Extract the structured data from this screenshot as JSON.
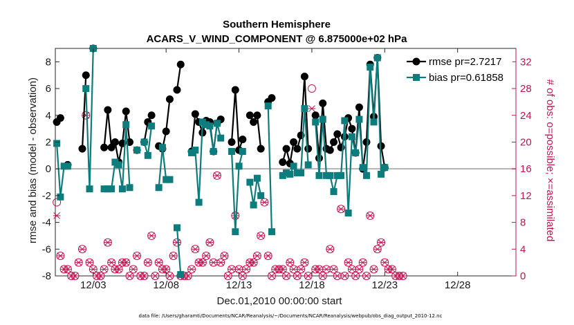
{
  "chart_data": {
    "type": "line",
    "title_line1": "Southern Hemisphere",
    "title_line2": "ACARS_V_WIND_COMPONENT @ 6.875000e+02 hPa",
    "xlabel": "Dec.01,2010 00:00:00 start",
    "ylabel_left": "rmse and bias (model - observation)",
    "ylabel_right": "# of obs: o=possible; ×=assimilated",
    "footnote": "data file: /Users/gharamti/Documents/NCAR/Reanalysis/~/Documents/NCAR/Reanalysis/webpub/obs_diag_output_2010-12.nc",
    "x_start": 0.5,
    "x_end": 31.75,
    "x_step": 0.25,
    "xlim": [
      0.4,
      32
    ],
    "ylim_left": [
      -8,
      9
    ],
    "ylim_right": [
      0,
      34
    ],
    "x_ticks": [
      3,
      8,
      13,
      18,
      23,
      28
    ],
    "x_tick_labels": [
      "12/03",
      "12/08",
      "12/13",
      "12/18",
      "12/23",
      "12/28"
    ],
    "y_ticks_left": [
      -8,
      -6,
      -4,
      -2,
      0,
      2,
      4,
      6,
      8
    ],
    "y_tick_labels_left": [
      "-8",
      "-6",
      "-4",
      "-2",
      "0",
      "2",
      "4",
      "6",
      "8"
    ],
    "y_ticks_right": [
      0,
      4,
      8,
      12,
      16,
      20,
      24,
      28,
      32
    ],
    "y_tick_labels_right": [
      "0",
      "4",
      "8",
      "12",
      "16",
      "20",
      "24",
      "28",
      "32"
    ],
    "series": [
      {
        "name": "rmse pr=2.7217",
        "color": "#000000",
        "values": [
          3.5,
          3.8,
          null,
          0.3,
          null,
          null,
          null,
          1.5,
          7.0,
          null,
          9.0,
          null,
          null,
          1.6,
          4.4,
          1.6,
          2.0,
          0.5,
          1.9,
          4.3,
          2.0,
          null,
          1.4,
          null,
          2.0,
          3.5,
          4.0,
          null,
          1.7,
          1.5,
          2.8,
          5.2,
          null,
          5.9,
          7.8,
          null,
          null,
          1.3,
          4.1,
          3.5,
          2.7,
          3.6,
          3.5,
          1.3,
          3.4,
          3.7,
          null,
          null,
          2.0,
          5.9,
          1.4,
          2.2,
          null,
          4.0,
          3.5,
          4.0,
          1.5,
          null,
          5.0,
          5.3,
          null,
          null,
          0.5,
          1.5,
          0.4,
          2.0,
          1.5,
          2.5,
          6.9,
          1.5,
          null,
          4.0,
          0.8,
          4.9,
          1.5,
          1.4,
          2.0,
          2.6,
          1.6,
          2.4,
          3.8,
          3.0,
          1.2,
          4.6,
          0.0,
          2.0,
          7.8,
          3.9,
          8.3,
          1.7,
          0.1,
          null,
          null,
          null,
          null,
          null
        ]
      },
      {
        "name": "bias pr=0.61858",
        "color": "#0c7c7c",
        "values": [
          1.9,
          -2.1,
          0.2,
          0.2,
          null,
          null,
          null,
          null,
          6.0,
          -1.5,
          9.0,
          null,
          null,
          -1.5,
          -1.5,
          -1.5,
          0.5,
          0.3,
          -1.5,
          3.3,
          -1.4,
          null,
          1.4,
          null,
          2.0,
          1.0,
          3.2,
          null,
          -1.4,
          1.6,
          -0.8,
          -0.8,
          null,
          -4.4,
          -7.9,
          null,
          null,
          1.2,
          1.4,
          -2.5,
          3.5,
          3.3,
          3.2,
          1.3,
          3.4,
          2.3,
          null,
          null,
          1.3,
          -4.7,
          0.2,
          1.3,
          null,
          -1.0,
          -2.7,
          -0.7,
          -2.0,
          null,
          4.7,
          -4.7,
          null,
          null,
          -0.5,
          -0.3,
          -0.4,
          0.2,
          -0.3,
          -0.3,
          4.5,
          0.3,
          null,
          3.5,
          -0.5,
          3.7,
          -0.5,
          -0.5,
          -1.7,
          -0.5,
          -0.5,
          3.6,
          -3.3,
          2.4,
          1.2,
          3.7,
          0.1,
          -0.5,
          7.6,
          3.5,
          8.3,
          -0.4,
          0.1,
          null,
          null,
          null,
          null,
          null
        ]
      }
    ],
    "obs_possible": [
      11,
      3,
      1,
      1,
      0,
      0,
      2,
      4,
      24,
      2,
      1,
      0,
      0,
      1,
      5,
      2,
      1,
      1,
      2,
      2,
      0,
      1,
      3,
      0,
      0,
      2,
      6,
      0,
      2,
      1,
      1,
      0,
      3,
      5,
      0,
      0,
      0,
      1,
      4,
      2,
      2,
      3,
      5,
      2,
      15,
      2,
      3,
      0,
      1,
      9,
      1,
      0,
      1,
      2,
      2,
      3,
      6,
      11,
      3,
      0,
      1,
      1,
      1,
      0,
      2,
      1,
      0,
      1,
      2,
      0,
      28,
      1,
      1,
      0,
      1,
      4,
      1,
      0,
      10,
      0,
      2,
      1,
      0,
      1,
      2,
      0,
      9,
      1,
      4,
      5,
      2,
      1,
      1,
      0,
      0,
      0
    ],
    "obs_assimilated": [
      9,
      3,
      1,
      1,
      0,
      0,
      2,
      4,
      24,
      2,
      1,
      0,
      0,
      1,
      5,
      2,
      1,
      1,
      2,
      2,
      0,
      1,
      3,
      0,
      0,
      2,
      6,
      0,
      2,
      1,
      1,
      0,
      3,
      5,
      0,
      0,
      0,
      1,
      4,
      2,
      2,
      3,
      5,
      2,
      15,
      2,
      3,
      0,
      1,
      9,
      1,
      0,
      1,
      2,
      2,
      3,
      6,
      11,
      3,
      0,
      1,
      1,
      1,
      0,
      2,
      1,
      0,
      1,
      2,
      0,
      25,
      1,
      1,
      0,
      1,
      4,
      1,
      0,
      10,
      0,
      2,
      1,
      0,
      1,
      2,
      0,
      9,
      1,
      4,
      5,
      2,
      1,
      1,
      0,
      0,
      0
    ],
    "legend_position": "top-right",
    "grid": false
  }
}
